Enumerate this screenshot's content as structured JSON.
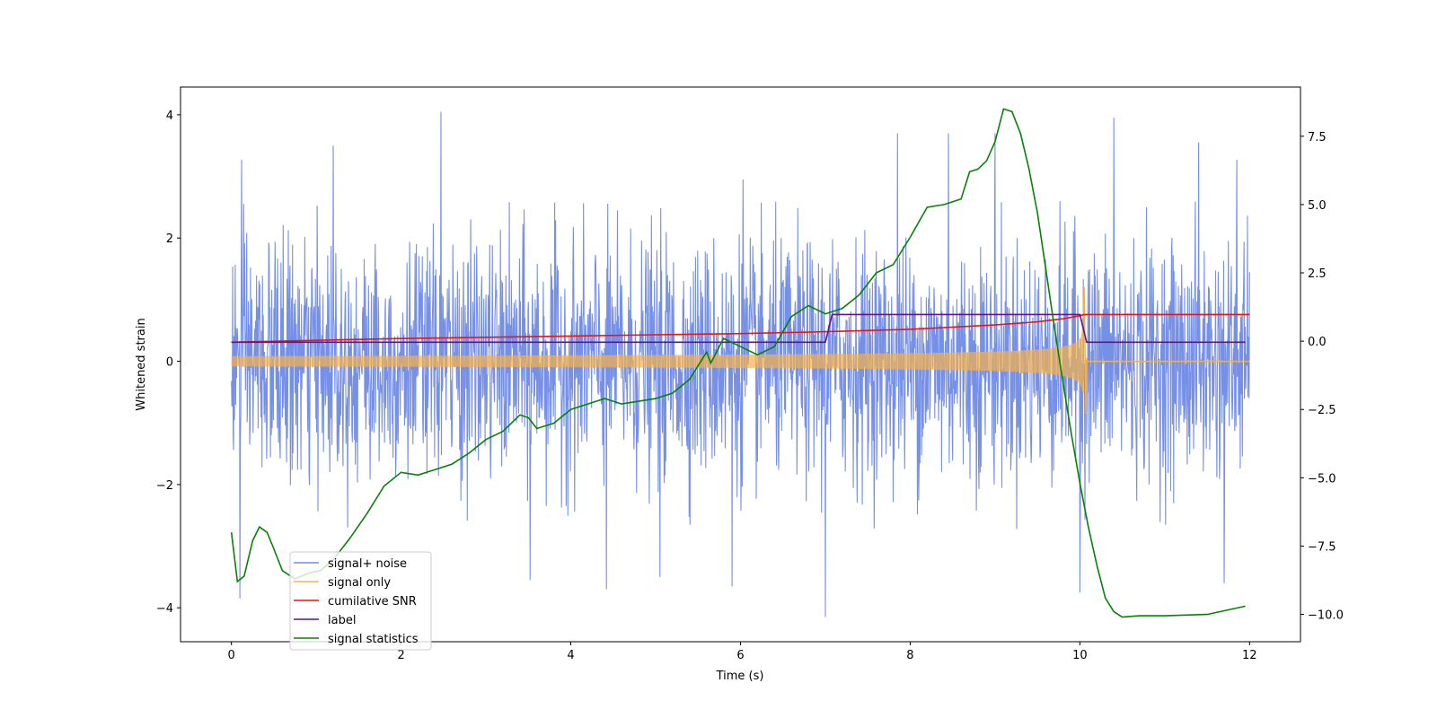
{
  "chart_data": {
    "type": "line",
    "title": "",
    "xlabel": "Time (s)",
    "ylabel": "Whitened strain",
    "y2label": "",
    "xlim": [
      -0.6,
      12.6
    ],
    "ylim": [
      -4.55,
      4.45
    ],
    "y2lim": [
      -11.0,
      9.3
    ],
    "x_ticks": [
      0,
      2,
      4,
      6,
      8,
      10,
      12
    ],
    "y_ticks": [
      -4,
      -2,
      0,
      2,
      4
    ],
    "y2_ticks": [
      -10.0,
      -7.5,
      -5.0,
      -2.5,
      0.0,
      2.5,
      5.0,
      7.5
    ],
    "y2_tick_labels": [
      "−10.0",
      "−7.5",
      "−5.0",
      "−2.5",
      "0.0",
      "2.5",
      "5.0",
      "7.5"
    ],
    "legend_position": "lower-left",
    "series": [
      {
        "name": "signal+ noise",
        "color": "#6f8ae6",
        "axis": "left",
        "kind": "noise",
        "x_range": [
          0,
          12
        ],
        "spikes": [
          {
            "x": 0.1,
            "y": -3.85
          },
          {
            "x": 0.12,
            "y": 3.27
          },
          {
            "x": 1.2,
            "y": 3.5
          },
          {
            "x": 2.47,
            "y": 4.05
          },
          {
            "x": 3.52,
            "y": -3.55
          },
          {
            "x": 4.42,
            "y": -3.7
          },
          {
            "x": 5.05,
            "y": -3.5
          },
          {
            "x": 5.9,
            "y": -3.65
          },
          {
            "x": 6.03,
            "y": 2.95
          },
          {
            "x": 7.0,
            "y": -4.15
          },
          {
            "x": 7.85,
            "y": 3.7
          },
          {
            "x": 8.45,
            "y": 3.7
          },
          {
            "x": 9.0,
            "y": 3.7
          },
          {
            "x": 10.0,
            "y": -3.75
          },
          {
            "x": 10.4,
            "y": 3.95
          },
          {
            "x": 11.4,
            "y": 3.55
          },
          {
            "x": 11.7,
            "y": -3.6
          },
          {
            "x": 11.85,
            "y": 3.27
          }
        ]
      },
      {
        "name": "signal only",
        "color": "#f5b04a",
        "axis": "left",
        "kind": "chirp",
        "x_range": [
          0,
          12
        ],
        "chirp_end": 10.05,
        "peak_amplitude": 1.2
      },
      {
        "name": "cumilative SNR",
        "color": "#e8141a",
        "axis": "left",
        "x": [
          0,
          1,
          2,
          3,
          4,
          5,
          6,
          7,
          8,
          9,
          9.5,
          9.8,
          10.0,
          10.05,
          12.0
        ],
        "y": [
          0.31,
          0.34,
          0.37,
          0.39,
          0.41,
          0.43,
          0.45,
          0.48,
          0.52,
          0.59,
          0.64,
          0.69,
          0.74,
          0.76,
          0.76
        ]
      },
      {
        "name": "label",
        "color": "#6a0f8a",
        "axis": "left",
        "x": [
          0,
          7.0,
          7.08,
          10.0,
          10.08,
          11.95
        ],
        "y": [
          0.31,
          0.31,
          0.76,
          0.76,
          0.31,
          0.31
        ]
      },
      {
        "name": "signal statistics",
        "color": "#098009",
        "axis": "right",
        "x": [
          0.0,
          0.07,
          0.15,
          0.25,
          0.33,
          0.42,
          0.5,
          0.6,
          0.75,
          0.9,
          1.05,
          1.2,
          1.4,
          1.6,
          1.8,
          2.0,
          2.2,
          2.4,
          2.6,
          2.8,
          3.0,
          3.2,
          3.4,
          3.5,
          3.6,
          3.8,
          4.0,
          4.2,
          4.4,
          4.6,
          4.8,
          5.0,
          5.2,
          5.4,
          5.6,
          5.65,
          5.8,
          6.0,
          6.2,
          6.4,
          6.6,
          6.8,
          7.0,
          7.2,
          7.4,
          7.6,
          7.8,
          8.0,
          8.2,
          8.4,
          8.6,
          8.7,
          8.8,
          8.9,
          9.0,
          9.1,
          9.2,
          9.3,
          9.4,
          9.5,
          9.6,
          9.7,
          9.8,
          9.9,
          10.0,
          10.1,
          10.2,
          10.3,
          10.4,
          10.5,
          10.7,
          11.0,
          11.5,
          11.95
        ],
        "y": [
          -7.0,
          -8.8,
          -8.6,
          -7.3,
          -6.8,
          -7.0,
          -7.6,
          -8.4,
          -8.7,
          -8.5,
          -8.4,
          -8.0,
          -7.2,
          -6.3,
          -5.3,
          -4.8,
          -4.9,
          -4.7,
          -4.5,
          -4.1,
          -3.6,
          -3.3,
          -2.7,
          -2.8,
          -3.2,
          -3.0,
          -2.5,
          -2.3,
          -2.1,
          -2.3,
          -2.2,
          -2.1,
          -1.9,
          -1.4,
          -0.4,
          -0.8,
          0.1,
          -0.2,
          -0.5,
          -0.2,
          0.9,
          1.3,
          1.0,
          1.2,
          1.7,
          2.5,
          2.8,
          3.8,
          4.9,
          5.0,
          5.2,
          6.2,
          6.3,
          6.6,
          7.3,
          8.5,
          8.4,
          7.6,
          6.3,
          4.7,
          2.6,
          0.5,
          -1.5,
          -3.4,
          -5.2,
          -6.8,
          -8.2,
          -9.4,
          -9.9,
          -10.1,
          -10.05,
          -10.05,
          -10.0,
          -9.7
        ]
      }
    ]
  }
}
